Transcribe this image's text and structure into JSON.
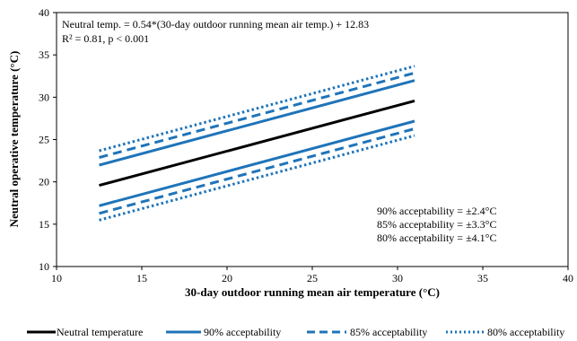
{
  "chart_data": {
    "type": "line",
    "xlabel": "30-day outdoor running mean air temperature (°C)",
    "ylabel": "Neutral operative temperature (°C)",
    "xlim": [
      10,
      40
    ],
    "ylim": [
      10,
      40
    ],
    "xticks": [
      "10",
      "15",
      "20",
      "25",
      "30",
      "35",
      "40"
    ],
    "yticks": [
      "10",
      "15",
      "20",
      "25",
      "30",
      "35",
      "40"
    ],
    "grid": false,
    "legend_position": "bottom",
    "annotations": {
      "equation": "Neutral temp. = 0.54*(30-day outdoor running mean air temp.) + 12.83",
      "stats": "R² = 0.81, p < 0.001",
      "acc90": "90% acceptability = ±2.4°C",
      "acc85": "85% acceptability = ±3.3°C",
      "acc80": "80% acceptability = ±4.1°C"
    },
    "series": [
      {
        "name": "Neutral temperature",
        "style": "solid",
        "color": "#000000",
        "width": 3,
        "x": [
          12.5,
          31
        ],
        "y": [
          19.58,
          29.57
        ]
      },
      {
        "name": "90% acceptability",
        "style": "solid",
        "color": "#1f74b9",
        "width": 3,
        "x": [
          12.5,
          31
        ],
        "y": [
          21.98,
          31.97
        ]
      },
      {
        "name": "",
        "style": "solid",
        "color": "#1f74b9",
        "width": 3,
        "x": [
          12.5,
          31
        ],
        "y": [
          17.18,
          27.17
        ]
      },
      {
        "name": "85% acceptability",
        "style": "dashed",
        "color": "#1f74b9",
        "width": 3,
        "x": [
          12.5,
          31
        ],
        "y": [
          22.88,
          32.87
        ]
      },
      {
        "name": "",
        "style": "dashed",
        "color": "#1f74b9",
        "width": 3,
        "x": [
          12.5,
          31
        ],
        "y": [
          16.28,
          26.27
        ]
      },
      {
        "name": "80% acceptability",
        "style": "dotted",
        "color": "#1f74b9",
        "width": 3,
        "x": [
          12.5,
          31
        ],
        "y": [
          23.68,
          33.67
        ]
      },
      {
        "name": "",
        "style": "dotted",
        "color": "#1f74b9",
        "width": 3,
        "x": [
          12.5,
          31
        ],
        "y": [
          15.48,
          25.47
        ]
      }
    ]
  }
}
